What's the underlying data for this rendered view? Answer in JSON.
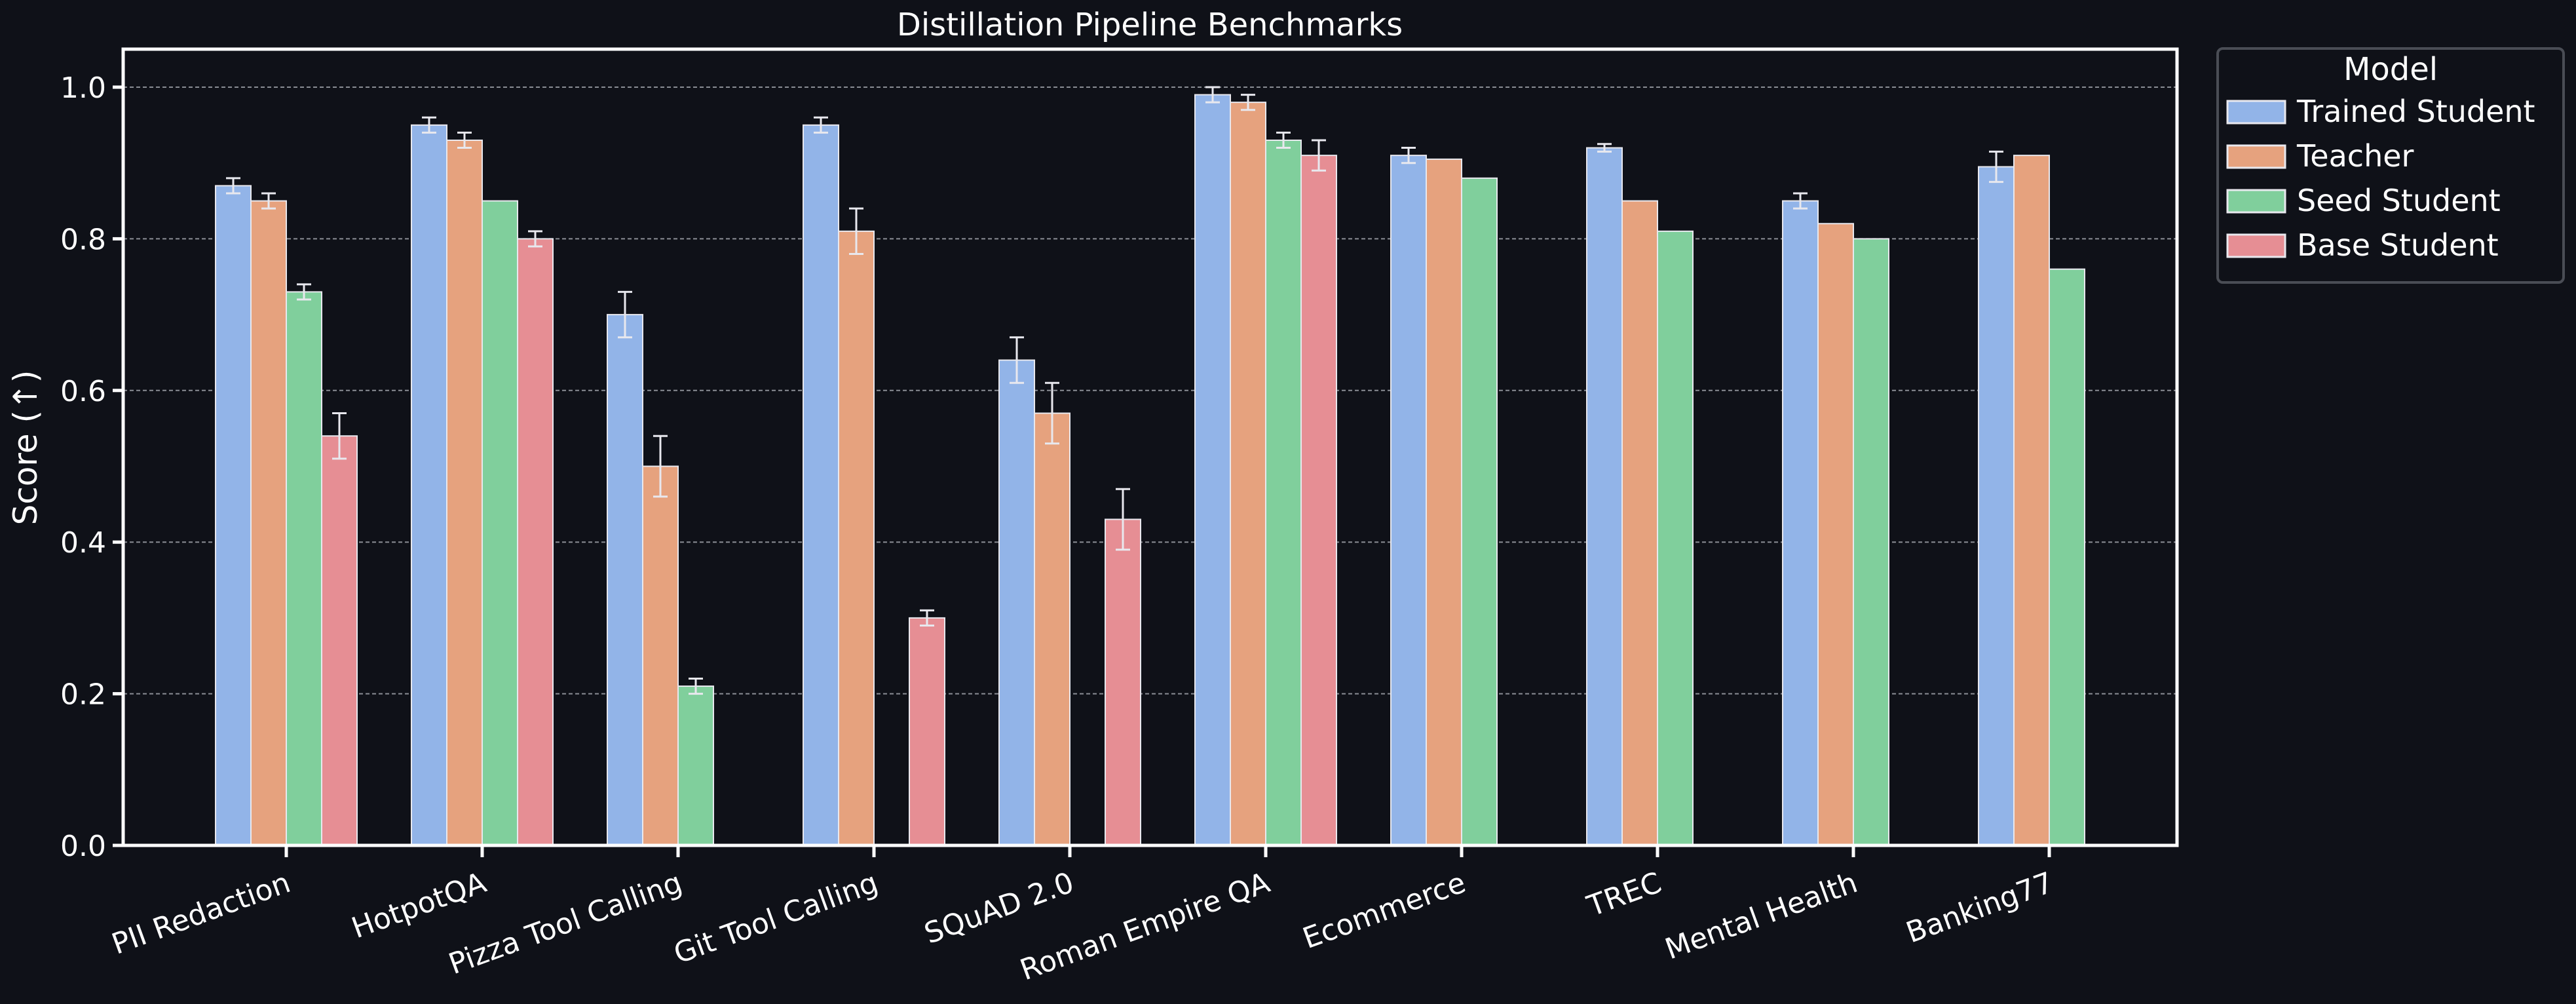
{
  "chart_data": {
    "type": "bar",
    "title": "Distillation Pipeline Benchmarks",
    "xlabel": "",
    "ylabel": "Score (↑)",
    "ylim": [
      0,
      1.05
    ],
    "yticks": [
      "0.0",
      "0.2",
      "0.4",
      "0.6",
      "0.8",
      "1.0"
    ],
    "ytick_values": [
      0,
      0.2,
      0.4,
      0.6,
      0.8,
      1.0
    ],
    "grid": true,
    "legend": {
      "title": "Model",
      "placement": "outside-top-right"
    },
    "categories": [
      "PII Redaction",
      "HotpotQA",
      "Pizza Tool Calling",
      "Git Tool Calling",
      "SQuAD 2.0",
      "Roman Empire QA",
      "Ecommerce",
      "TREC",
      "Mental Health",
      "Banking77"
    ],
    "series": [
      {
        "name": "Trained Student",
        "color": "#92b4e8",
        "values": [
          0.87,
          0.95,
          0.7,
          0.95,
          0.64,
          0.99,
          0.91,
          0.92,
          0.85,
          0.895
        ],
        "errors": [
          0.01,
          0.01,
          0.03,
          0.01,
          0.03,
          0.01,
          0.01,
          0.005,
          0.01,
          0.02
        ]
      },
      {
        "name": "Teacher",
        "color": "#e6a27e",
        "values": [
          0.85,
          0.93,
          0.5,
          0.81,
          0.57,
          0.98,
          0.905,
          0.85,
          0.82,
          0.91
        ],
        "errors": [
          0.01,
          0.01,
          0.04,
          0.03,
          0.04,
          0.01,
          null,
          null,
          null,
          null
        ]
      },
      {
        "name": "Seed Student",
        "color": "#80cf9c",
        "values": [
          0.73,
          0.85,
          0.21,
          null,
          null,
          0.93,
          0.88,
          0.81,
          0.8,
          0.76
        ],
        "errors": [
          0.01,
          null,
          0.01,
          null,
          null,
          0.01,
          null,
          null,
          null,
          null
        ]
      },
      {
        "name": "Base Student",
        "color": "#e68e94",
        "values": [
          0.54,
          0.8,
          null,
          0.3,
          0.43,
          0.91,
          null,
          null,
          null,
          null
        ],
        "errors": [
          0.03,
          0.01,
          null,
          0.01,
          0.04,
          0.02,
          null,
          null,
          null,
          null
        ]
      }
    ]
  }
}
